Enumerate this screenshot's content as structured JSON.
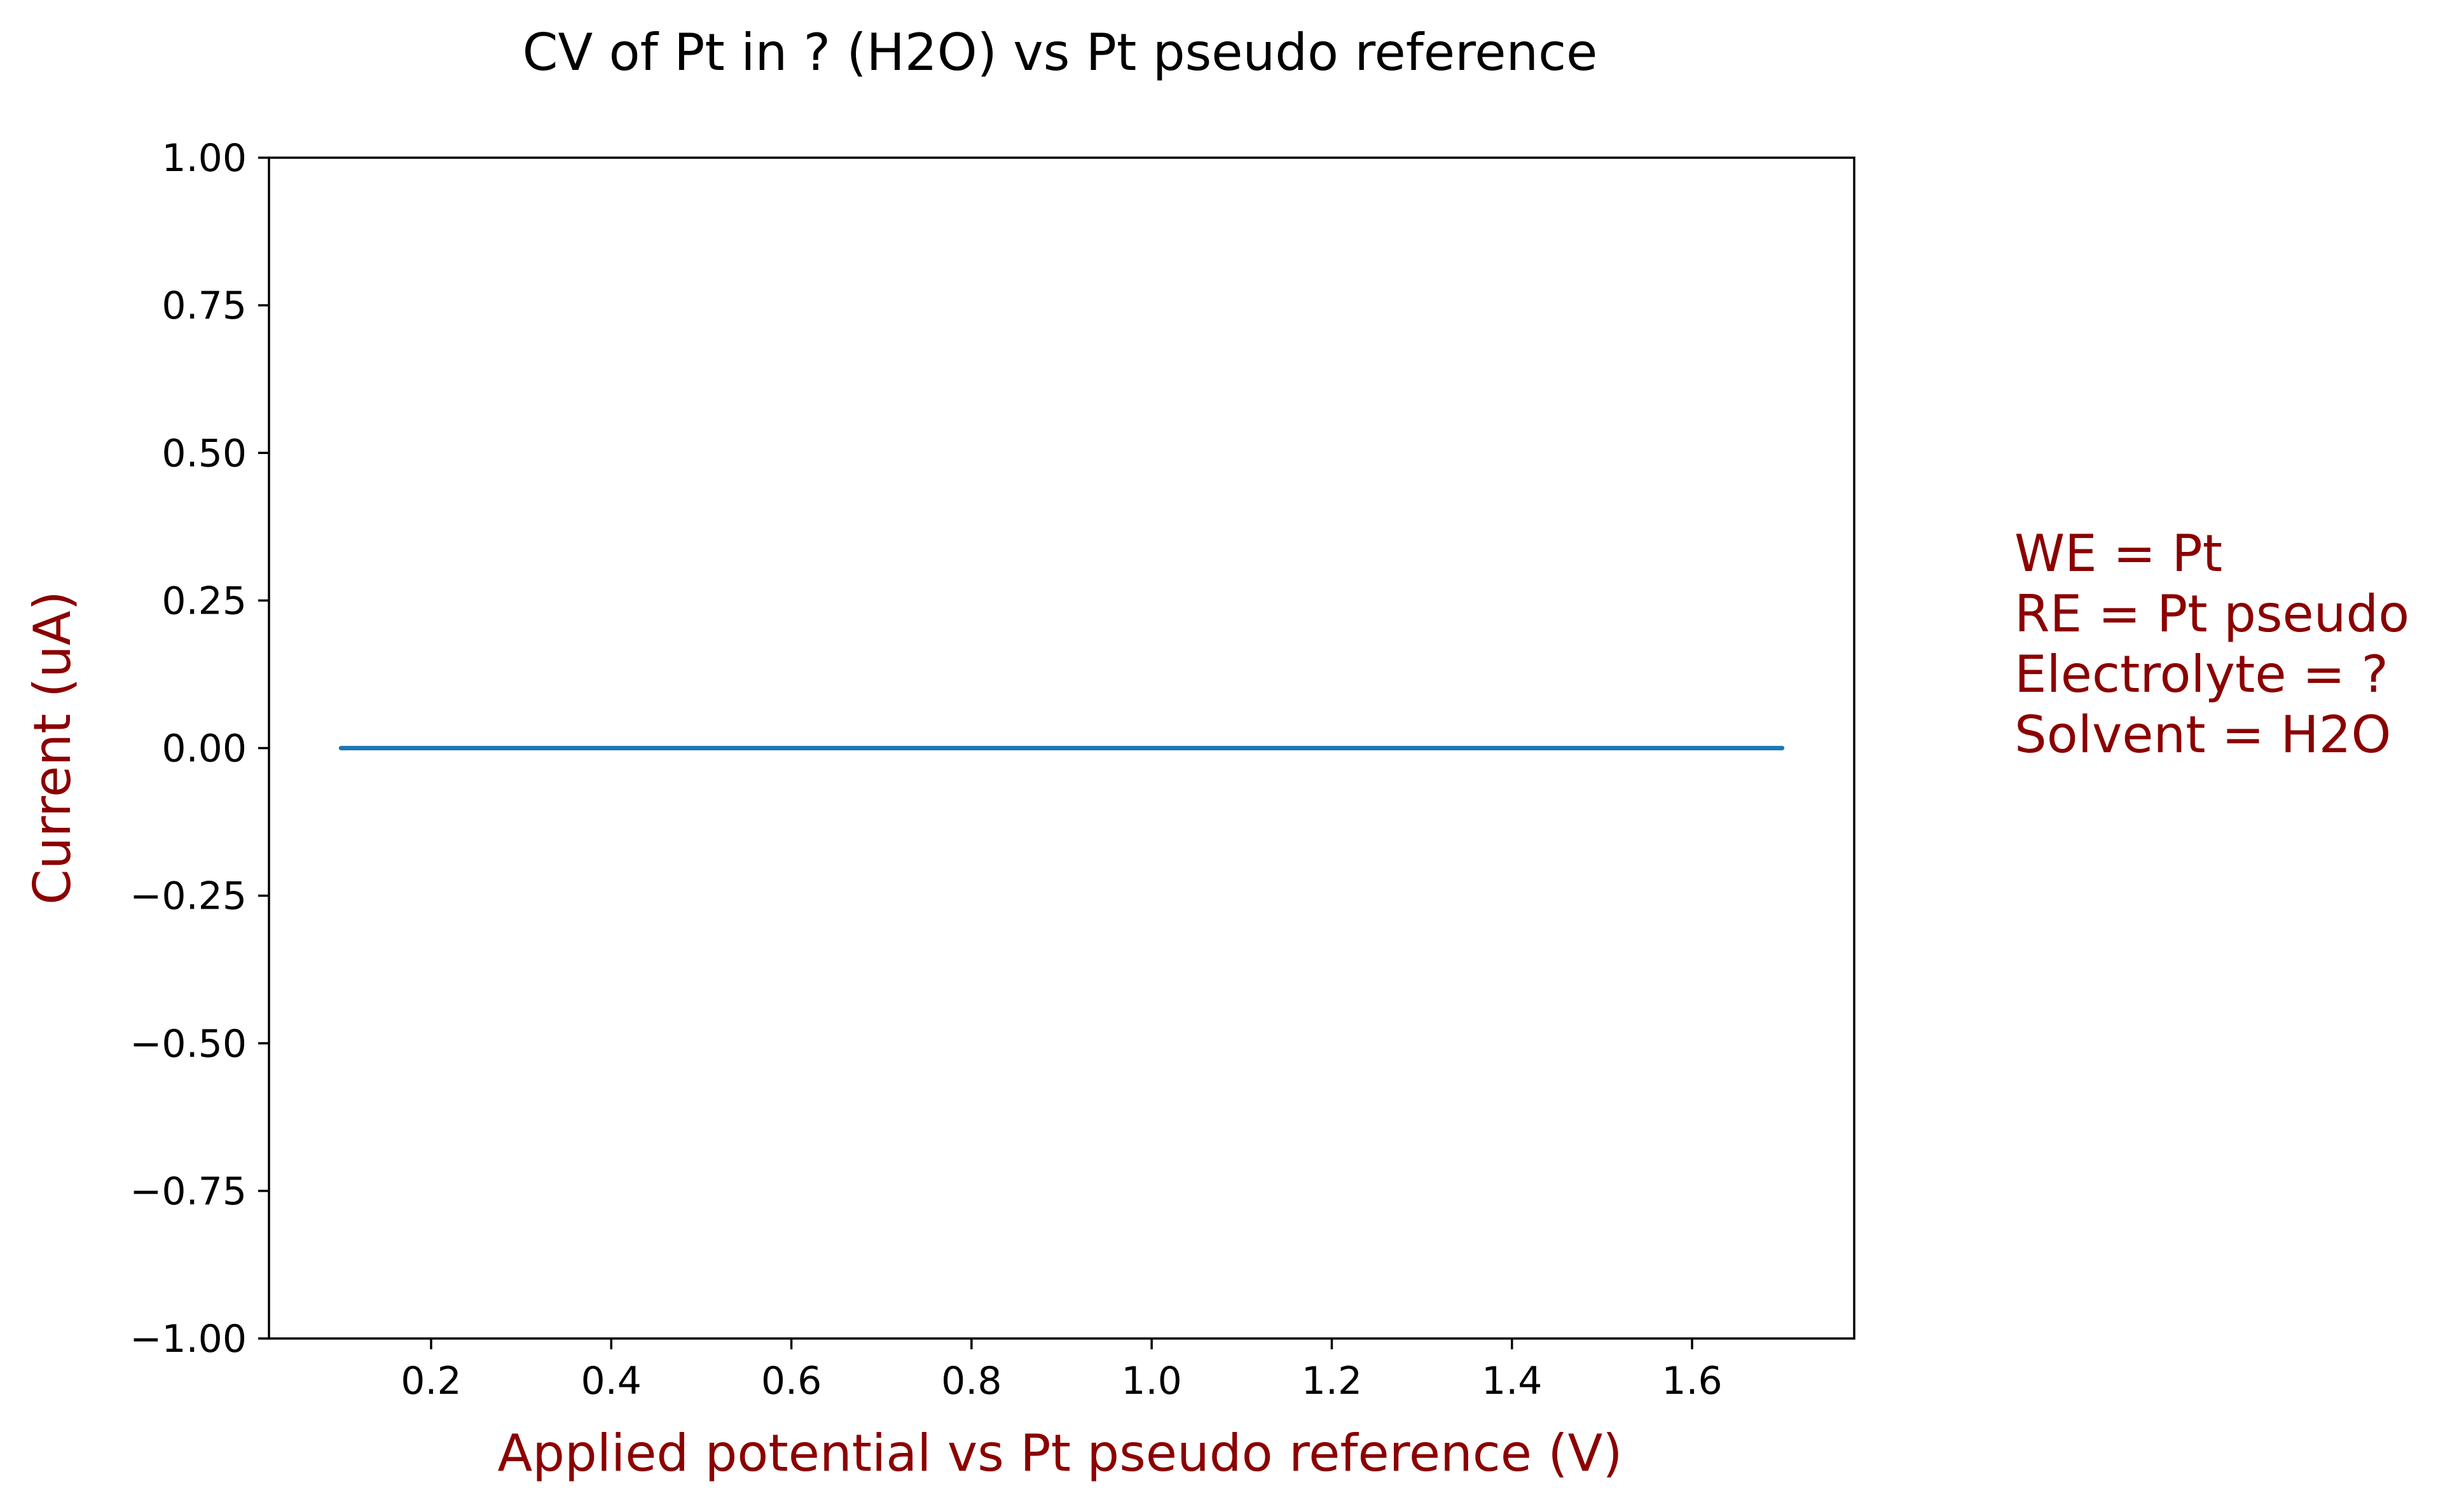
{
  "chart_data": {
    "type": "line",
    "title": "CV of Pt in ? (H2O) vs Pt pseudo reference",
    "xlabel": "Applied potential vs Pt pseudo reference (V)",
    "ylabel": "Current (uA)",
    "xlim": [
      0.02,
      1.78
    ],
    "ylim": [
      -1.0,
      1.0
    ],
    "x_ticks": [
      0.2,
      0.4,
      0.6,
      0.8,
      1.0,
      1.2,
      1.4,
      1.6
    ],
    "x_tick_labels": [
      "0.2",
      "0.4",
      "0.6",
      "0.8",
      "1.0",
      "1.2",
      "1.4",
      "1.6"
    ],
    "y_ticks": [
      1.0,
      0.75,
      0.5,
      0.25,
      0.0,
      -0.25,
      -0.5,
      -0.75,
      -1.0
    ],
    "y_tick_labels": [
      "1.00",
      "0.75",
      "0.50",
      "0.25",
      "0.00",
      "−0.25",
      "−0.50",
      "−0.75",
      "−1.00"
    ],
    "grid": false,
    "series": [
      {
        "x": [
          0.1,
          1.7
        ],
        "y": [
          0.0,
          0.0
        ]
      }
    ],
    "annotation": [
      "WE = Pt",
      "RE = Pt pseudo",
      "Electrolyte = ?",
      "Solvent = H2O"
    ]
  },
  "colors": {
    "series_line": "#1f77b4",
    "label_accent": "#8b0000",
    "axis": "#000000",
    "title": "#000000"
  }
}
